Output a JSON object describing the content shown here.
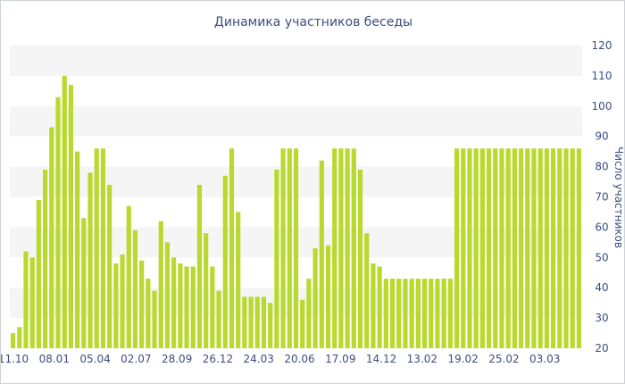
{
  "chart_data": {
    "type": "bar",
    "title": "Динамика участников беседы",
    "ylabel": "Число участников",
    "xlabel": "",
    "ylim": [
      20,
      120
    ],
    "y_ticks": [
      20,
      30,
      40,
      50,
      60,
      70,
      80,
      90,
      100,
      110,
      120
    ],
    "x_tick_labels": [
      "11.10",
      "08.01",
      "05.04",
      "02.07",
      "28.09",
      "26.12",
      "24.03",
      "20.06",
      "17.09",
      "14.12",
      "13.02",
      "19.02",
      "25.02",
      "03.03"
    ],
    "grid": "horizontal alternating bands",
    "colors": {
      "bar": "#b9d92e",
      "text": "#3b4e83",
      "band": "#f5f5f5"
    },
    "values": [
      25,
      27,
      52,
      50,
      69,
      79,
      93,
      103,
      110,
      107,
      85,
      63,
      78,
      86,
      86,
      74,
      48,
      51,
      67,
      59,
      49,
      43,
      39,
      62,
      55,
      50,
      48,
      47,
      47,
      74,
      58,
      47,
      39,
      77,
      86,
      65,
      37,
      37,
      37,
      37,
      35,
      79,
      86,
      86,
      86,
      36,
      43,
      53,
      82,
      54,
      86,
      86,
      86,
      86,
      79,
      58,
      48,
      47,
      43,
      43,
      43,
      43,
      43,
      43,
      43,
      43,
      43,
      43,
      43,
      86,
      86,
      86,
      86,
      86,
      86,
      86,
      86,
      86,
      86,
      86,
      86,
      86,
      86,
      86,
      86,
      86,
      86,
      86,
      86
    ]
  }
}
